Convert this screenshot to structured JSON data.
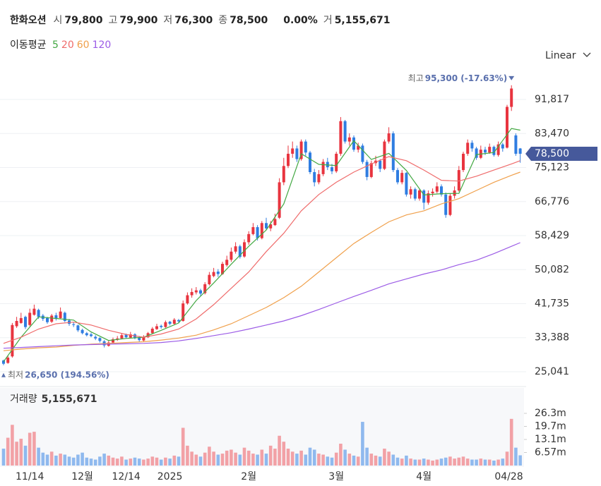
{
  "header": {
    "name": "한화오션",
    "open_label": "시",
    "open": "79,800",
    "high_label": "고",
    "high": "79,900",
    "low_label": "저",
    "low": "76,300",
    "close_label": "종",
    "close": "78,500",
    "change": "0.00%",
    "volume_label": "거",
    "volume": "5,155,671"
  },
  "ma_legend_title": "이동평균",
  "scale_button": "Linear",
  "chart_data": {
    "type": "candlestick",
    "categories": [
      null,
      null,
      null,
      null,
      null,
      null,
      "11/14",
      null,
      null,
      null,
      null,
      null,
      null,
      null,
      null,
      null,
      null,
      null,
      "12월",
      null,
      null,
      null,
      null,
      null,
      null,
      null,
      null,
      null,
      "12/14",
      null,
      null,
      null,
      null,
      null,
      null,
      null,
      null,
      null,
      "2025",
      null,
      null,
      null,
      null,
      null,
      null,
      null,
      null,
      null,
      null,
      null,
      null,
      null,
      null,
      null,
      null,
      null,
      "2월",
      null,
      null,
      null,
      null,
      null,
      null,
      null,
      null,
      null,
      null,
      null,
      null,
      null,
      null,
      null,
      null,
      null,
      null,
      null,
      "3월",
      null,
      null,
      null,
      null,
      null,
      null,
      null,
      null,
      null,
      null,
      null,
      null,
      null,
      null,
      null,
      null,
      null,
      null,
      null,
      "4월",
      null,
      null,
      null,
      null,
      null,
      null,
      null,
      null,
      null,
      null,
      null,
      null,
      null,
      null,
      null,
      null,
      null,
      null,
      null,
      null,
      null,
      "04/28"
    ],
    "open": [
      27800,
      27200,
      28800,
      36200,
      37000,
      38500,
      36500,
      39000,
      40200,
      38800,
      38200,
      37300,
      38900,
      38200,
      39500,
      37600,
      36700,
      36400,
      35300,
      34500,
      34200,
      33600,
      33300,
      32500,
      31400,
      32200,
      32900,
      33200,
      34100,
      33400,
      34200,
      33500,
      32700,
      33500,
      34500,
      35500,
      36300,
      36000,
      37300,
      36800,
      37700,
      37500,
      41800,
      43800,
      44500,
      45000,
      44300,
      46500,
      48500,
      49600,
      49000,
      51200,
      52500,
      54500,
      55800,
      53300,
      56800,
      58800,
      60500,
      57800,
      61500,
      60200,
      61000,
      62800,
      71500,
      75500,
      78500,
      79800,
      77200,
      81500,
      78800,
      74000,
      71500,
      73500,
      76500,
      75200,
      74200,
      78500,
      86500,
      81500,
      82500,
      79500,
      80500,
      76500,
      72800,
      76200,
      76800,
      74800,
      81500,
      83500,
      74500,
      71500,
      73800,
      68500,
      69800,
      67500,
      69500,
      66500,
      68800,
      69200,
      70500,
      68500,
      63500,
      68200,
      69500,
      74500,
      78500,
      81200,
      79800,
      77500,
      79500,
      78800,
      80200,
      78200,
      80800,
      80000,
      90000,
      83000,
      79800
    ],
    "high": [
      28000,
      29000,
      37000,
      38500,
      39500,
      38800,
      40500,
      41500,
      40500,
      39200,
      38500,
      39200,
      39500,
      40800,
      39800,
      38000,
      37200,
      36600,
      35600,
      34800,
      34600,
      34000,
      33500,
      32800,
      32600,
      33400,
      33800,
      34500,
      34400,
      34800,
      34500,
      33800,
      34000,
      34800,
      36000,
      36800,
      36600,
      37600,
      37500,
      38200,
      38000,
      42500,
      44500,
      45500,
      45800,
      45400,
      47000,
      49500,
      50500,
      50200,
      52000,
      53500,
      55500,
      56800,
      56200,
      57500,
      59500,
      61500,
      61000,
      62000,
      62800,
      62000,
      63800,
      72500,
      77500,
      80500,
      81500,
      80500,
      82000,
      82000,
      79200,
      74800,
      74500,
      77200,
      77500,
      76000,
      79000,
      87500,
      86800,
      83500,
      83000,
      81200,
      81000,
      77000,
      76800,
      78000,
      77200,
      82000,
      85000,
      84000,
      75000,
      74500,
      74000,
      70500,
      70200,
      70000,
      69800,
      69500,
      70000,
      71500,
      71000,
      69000,
      68800,
      70500,
      75500,
      79000,
      82000,
      81800,
      80200,
      80500,
      80200,
      81000,
      80500,
      81500,
      81200,
      90500,
      95300,
      83500,
      79900
    ],
    "low": [
      26650,
      27000,
      28500,
      35800,
      36800,
      35500,
      36200,
      38800,
      38000,
      37500,
      36800,
      37000,
      37600,
      38000,
      37200,
      36300,
      36000,
      34800,
      34200,
      33700,
      33500,
      32800,
      32200,
      31000,
      31200,
      32000,
      32600,
      33000,
      33200,
      33200,
      33000,
      32400,
      32500,
      33300,
      34300,
      35300,
      35600,
      35800,
      36400,
      36500,
      37000,
      37300,
      41500,
      43200,
      44000,
      43600,
      44000,
      46200,
      48200,
      48300,
      48800,
      50800,
      52000,
      54000,
      52800,
      53000,
      56200,
      58500,
      57200,
      57500,
      59800,
      59500,
      60800,
      62500,
      70800,
      75000,
      77500,
      76500,
      76800,
      78000,
      73500,
      70500,
      71000,
      73000,
      74500,
      73500,
      73800,
      78000,
      81000,
      80500,
      79000,
      78800,
      76000,
      72000,
      72500,
      75500,
      74000,
      74500,
      81000,
      74000,
      71000,
      71000,
      68000,
      67500,
      67000,
      67000,
      64800,
      66000,
      68000,
      68800,
      68000,
      62800,
      63200,
      67500,
      69200,
      74000,
      78000,
      79000,
      77000,
      77200,
      78200,
      78500,
      77800,
      77800,
      79000,
      79800,
      89000,
      78000,
      76300
    ],
    "close": [
      27000,
      28500,
      36500,
      37500,
      38200,
      36000,
      39500,
      40500,
      38500,
      38000,
      37200,
      38800,
      38000,
      39800,
      37500,
      36800,
      36500,
      35200,
      34500,
      34000,
      33800,
      33200,
      32600,
      31500,
      32200,
      33000,
      33200,
      34000,
      33500,
      34200,
      33400,
      32800,
      33600,
      34500,
      35600,
      36200,
      36000,
      37200,
      36800,
      37800,
      37400,
      41800,
      43800,
      44600,
      45000,
      44200,
      46500,
      48800,
      49500,
      49000,
      51500,
      52500,
      54500,
      55800,
      53200,
      56800,
      58800,
      60500,
      57800,
      61500,
      60200,
      61200,
      62500,
      71500,
      75500,
      78500,
      79800,
      77200,
      81500,
      78800,
      74000,
      71500,
      73500,
      76500,
      75200,
      74200,
      78500,
      86500,
      81500,
      82500,
      79500,
      80500,
      76500,
      72800,
      76200,
      76800,
      74800,
      81500,
      83500,
      74500,
      71500,
      73800,
      68500,
      69800,
      67500,
      69500,
      66500,
      68800,
      69200,
      70500,
      68500,
      63500,
      68200,
      69500,
      74500,
      78500,
      81200,
      79800,
      77500,
      79500,
      78800,
      80200,
      78200,
      80800,
      79800,
      90000,
      94500,
      78500,
      78500
    ],
    "up_color": "#e8343f",
    "down_color": "#2f7de1",
    "ylim": [
      21927,
      99775
    ],
    "yticks": [
      {
        "value": 25041,
        "label": "25,041"
      },
      {
        "value": 33388,
        "label": "33,388"
      },
      {
        "value": 41735,
        "label": "41,735"
      },
      {
        "value": 50082,
        "label": "50,082"
      },
      {
        "value": 58429,
        "label": "58,429"
      },
      {
        "value": 66776,
        "label": "66,776"
      },
      {
        "value": 75123,
        "label": "75,123"
      },
      {
        "value": 83470,
        "label": "83,470"
      },
      {
        "value": 91817,
        "label": "91,817"
      }
    ],
    "grid": true,
    "ma": {
      "x": [
        0,
        4,
        8,
        12,
        16,
        20,
        24,
        28,
        32,
        36,
        40,
        44,
        48,
        52,
        56,
        60,
        64,
        68,
        72,
        76,
        80,
        84,
        88,
        92,
        96,
        100,
        104,
        108,
        112,
        116,
        118
      ],
      "series": [
        {
          "name": "5",
          "color": "#43a843",
          "values": [
            27500,
            33500,
            38500,
            38100,
            37700,
            34800,
            32700,
            33200,
            33500,
            35200,
            37000,
            42500,
            46800,
            51400,
            55800,
            59800,
            66200,
            78500,
            75900,
            75600,
            81700,
            77100,
            78600,
            74400,
            68400,
            68700,
            68800,
            78300,
            78800,
            84700,
            84300
          ]
        },
        {
          "name": "20",
          "color": "#ef6b6b",
          "values": [
            32000,
            33500,
            35500,
            36800,
            37200,
            36500,
            35200,
            34200,
            33500,
            34300,
            35500,
            38000,
            41500,
            45500,
            49500,
            54500,
            59000,
            64500,
            68500,
            71500,
            74000,
            76000,
            77800,
            76800,
            74500,
            72000,
            71800,
            73000,
            74500,
            76000,
            76800
          ]
        },
        {
          "name": "60",
          "color": "#f0a04b",
          "values": [
            30200,
            30600,
            30900,
            31100,
            31500,
            31800,
            32000,
            32200,
            32400,
            32800,
            33300,
            34000,
            35300,
            36800,
            38800,
            40800,
            43200,
            46000,
            49500,
            53000,
            56500,
            59200,
            61800,
            63500,
            64500,
            66200,
            67500,
            69500,
            71500,
            73200,
            74000
          ]
        },
        {
          "name": "120",
          "color": "#9c5ce6",
          "values": [
            30800,
            31000,
            31200,
            31400,
            31600,
            31700,
            31800,
            31900,
            32000,
            32200,
            32600,
            33200,
            33900,
            34600,
            35500,
            36500,
            37500,
            38800,
            40300,
            41900,
            43500,
            45000,
            46600,
            47800,
            49000,
            50000,
            51300,
            52400,
            54000,
            55800,
            56700
          ]
        }
      ]
    },
    "max_annotation": {
      "label": "최고",
      "text": "95,300 (-17.63%)"
    },
    "min_annotation": {
      "label": "최저",
      "text": "26,650 (194.56%)"
    },
    "price_tag": "78,500",
    "volume": {
      "title": "거래량",
      "title_value": "5,155,671",
      "values": [
        8500000,
        14000000,
        20500000,
        12000000,
        13500000,
        10000000,
        16500000,
        17000000,
        9000000,
        6500000,
        5500000,
        7000000,
        5000000,
        6000000,
        5500000,
        4500000,
        4000000,
        5500000,
        6500000,
        4000000,
        3500000,
        3000000,
        4500000,
        6000000,
        5000000,
        4000000,
        3500000,
        4500000,
        3000000,
        3500000,
        4000000,
        3500000,
        3000000,
        3500000,
        4500000,
        4000000,
        3000000,
        4000000,
        3500000,
        5000000,
        4500000,
        19000000,
        10000000,
        7000000,
        5500000,
        4500000,
        6500000,
        9500000,
        7000000,
        5500000,
        6000000,
        7500000,
        8000000,
        6500000,
        5500000,
        9000000,
        7500000,
        6000000,
        5500000,
        8000000,
        6000000,
        10000000,
        8500000,
        15000000,
        12000000,
        8500000,
        7000000,
        6000000,
        7500000,
        5500000,
        9000000,
        8000000,
        6000000,
        5500000,
        4500000,
        4000000,
        6500000,
        11000000,
        8000000,
        6000000,
        5000000,
        4500000,
        22000000,
        9000000,
        6000000,
        5000000,
        4500000,
        8500000,
        7000000,
        5500000,
        4000000,
        3500000,
        5000000,
        3500000,
        3000000,
        3000000,
        3500000,
        3000000,
        2500000,
        3000000,
        3500000,
        4000000,
        4500000,
        3500000,
        4000000,
        4500000,
        3500000,
        3000000,
        3000000,
        3500000,
        3000000,
        3000000,
        2500000,
        3000000,
        3500000,
        7000000,
        23500000,
        9000000,
        5155671
      ],
      "ylim": [
        0,
        39060000
      ],
      "yticks": [
        {
          "value": 6570000,
          "label": "6.57m"
        },
        {
          "value": 13140000,
          "label": "13.1m"
        },
        {
          "value": 19710000,
          "label": "19.7m"
        },
        {
          "value": 26280000,
          "label": "26.3m"
        }
      ],
      "up_color": "#f2a1a6",
      "down_color": "#8fb9ee"
    }
  }
}
